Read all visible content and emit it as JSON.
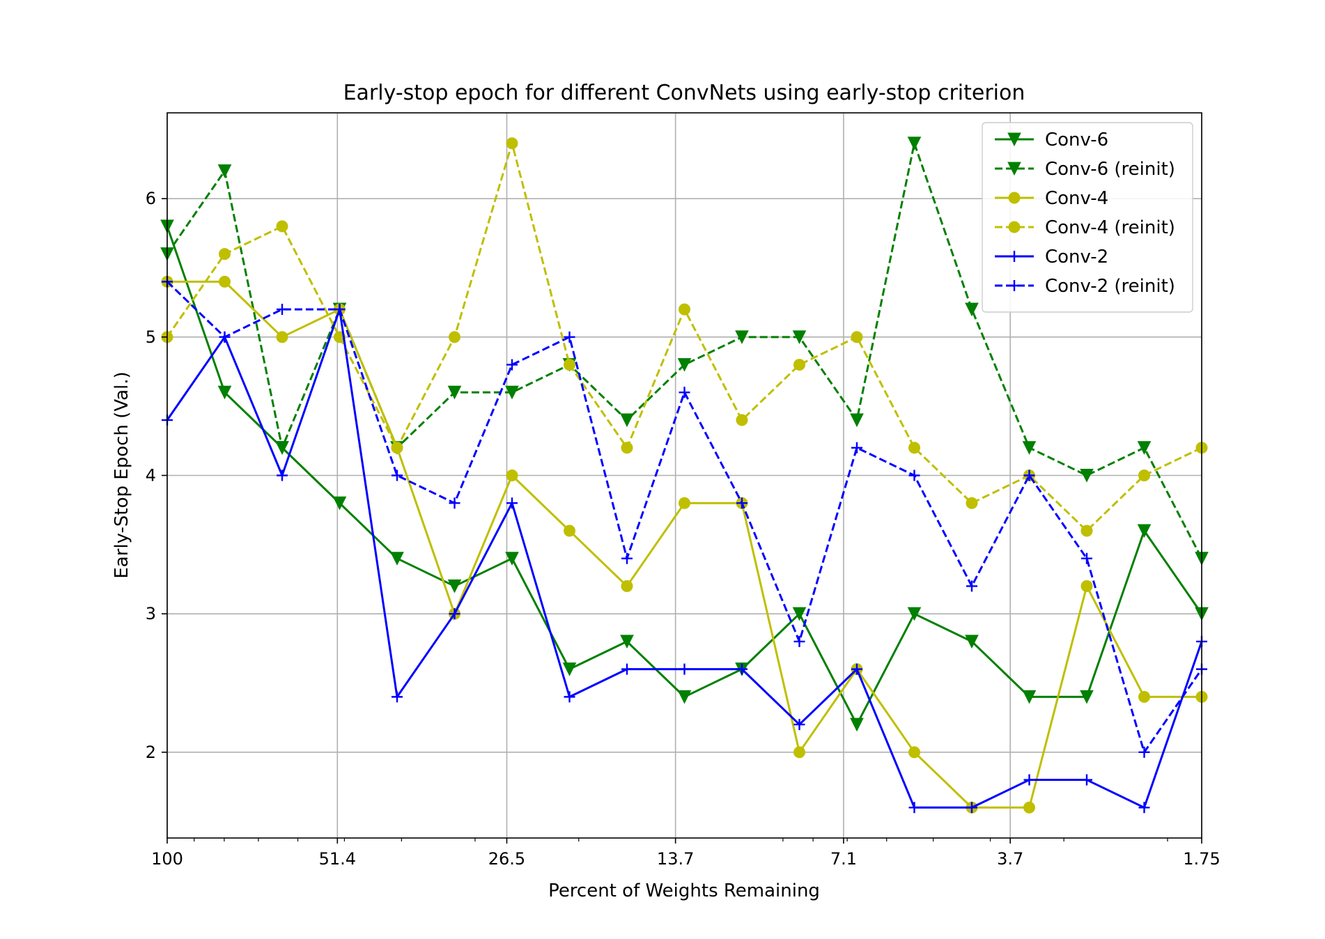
{
  "chart_data": {
    "type": "line",
    "title": "Early-stop epoch for different ConvNets using early-stop criterion",
    "xlabel": "Percent of Weights Remaining",
    "ylabel": "Early-Stop Epoch (Val.)",
    "x_scale": "log-reversed",
    "xlim": [
      100,
      1.75
    ],
    "ylim": [
      1.38,
      6.62
    ],
    "x": [
      100,
      80.0,
      64.0,
      51.4,
      41.1,
      32.9,
      26.5,
      21.2,
      16.9,
      13.7,
      11.0,
      8.8,
      7.1,
      5.7,
      4.6,
      3.7,
      2.95,
      2.35,
      1.75
    ],
    "x_tick_labels": [
      "100",
      "51.4",
      "26.5",
      "13.7",
      "7.1",
      "3.7",
      "1.75"
    ],
    "x_tick_values": [
      100,
      51.4,
      26.5,
      13.7,
      7.1,
      3.7,
      1.75
    ],
    "y_ticks": [
      2,
      3,
      4,
      5,
      6
    ],
    "grid": true,
    "legend_position": "upper-right",
    "series": [
      {
        "name": "Conv-6",
        "color": "#008000",
        "dash": "solid",
        "marker": "triangle-down",
        "values": [
          5.8,
          4.6,
          4.2,
          3.8,
          3.4,
          3.2,
          3.4,
          2.6,
          2.8,
          2.4,
          2.6,
          3.0,
          2.2,
          3.0,
          2.8,
          2.4,
          2.4,
          3.6,
          3.0
        ]
      },
      {
        "name": "Conv-6 (reinit)",
        "color": "#008000",
        "dash": "dashed",
        "marker": "triangle-down",
        "values": [
          5.6,
          6.2,
          4.2,
          5.2,
          4.2,
          4.6,
          4.6,
          4.8,
          4.4,
          4.8,
          5.0,
          5.0,
          4.4,
          6.4,
          5.2,
          4.2,
          4.0,
          4.2,
          3.4
        ]
      },
      {
        "name": "Conv-4",
        "color": "#bfbf00",
        "dash": "solid",
        "marker": "circle",
        "values": [
          5.4,
          5.4,
          5.0,
          5.2,
          4.2,
          3.0,
          4.0,
          3.6,
          3.2,
          3.8,
          3.8,
          2.0,
          2.6,
          2.0,
          1.6,
          1.6,
          3.2,
          2.4,
          2.4
        ]
      },
      {
        "name": "Conv-4 (reinit)",
        "color": "#bfbf00",
        "dash": "dashed",
        "marker": "circle",
        "values": [
          5.0,
          5.6,
          5.8,
          5.0,
          4.2,
          5.0,
          6.4,
          4.8,
          4.2,
          5.2,
          4.4,
          4.8,
          5.0,
          4.2,
          3.8,
          4.0,
          3.6,
          4.0,
          4.2
        ]
      },
      {
        "name": "Conv-2",
        "color": "#0000ff",
        "dash": "solid",
        "marker": "plus",
        "values": [
          4.4,
          5.0,
          4.0,
          5.2,
          2.4,
          3.0,
          3.8,
          2.4,
          2.6,
          2.6,
          2.6,
          2.2,
          2.6,
          1.6,
          1.6,
          1.8,
          1.8,
          1.6,
          2.8
        ]
      },
      {
        "name": "Conv-2 (reinit)",
        "color": "#0000ff",
        "dash": "dashed",
        "marker": "plus",
        "values": [
          5.4,
          5.0,
          5.2,
          5.2,
          4.0,
          3.8,
          4.8,
          5.0,
          3.4,
          4.6,
          3.8,
          2.8,
          4.2,
          4.0,
          3.2,
          4.0,
          3.4,
          2.0,
          2.6
        ]
      }
    ]
  }
}
